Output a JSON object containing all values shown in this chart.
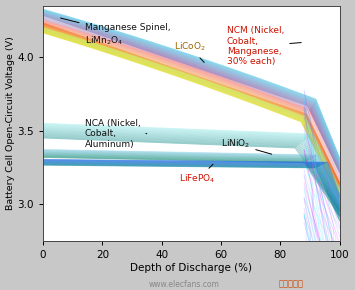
{
  "xlabel": "Depth of Discharge (%)",
  "ylabel": "Battery Cell Open-Circuit Voltage (V)",
  "xlim": [
    0,
    100
  ],
  "ylim": [
    2.75,
    4.35
  ],
  "yticks": [
    3.0,
    3.5,
    4.0
  ],
  "xticks": [
    0,
    20,
    40,
    60,
    80,
    100
  ],
  "background_color": "#c8c8c8",
  "plot_bg": "#ffffff",
  "high_group_start": 4.27,
  "high_group_end": 3.58,
  "high_group_spread": 0.18,
  "high_group_n": 60,
  "nca_v": 3.5,
  "nca_spread": 0.1,
  "nca_n": 20,
  "linio_v": 3.345,
  "linio_spread": 0.055,
  "linio_n": 20,
  "lifepo_v": 3.285,
  "lifepo_spread": 0.04,
  "lifepo_n": 18
}
